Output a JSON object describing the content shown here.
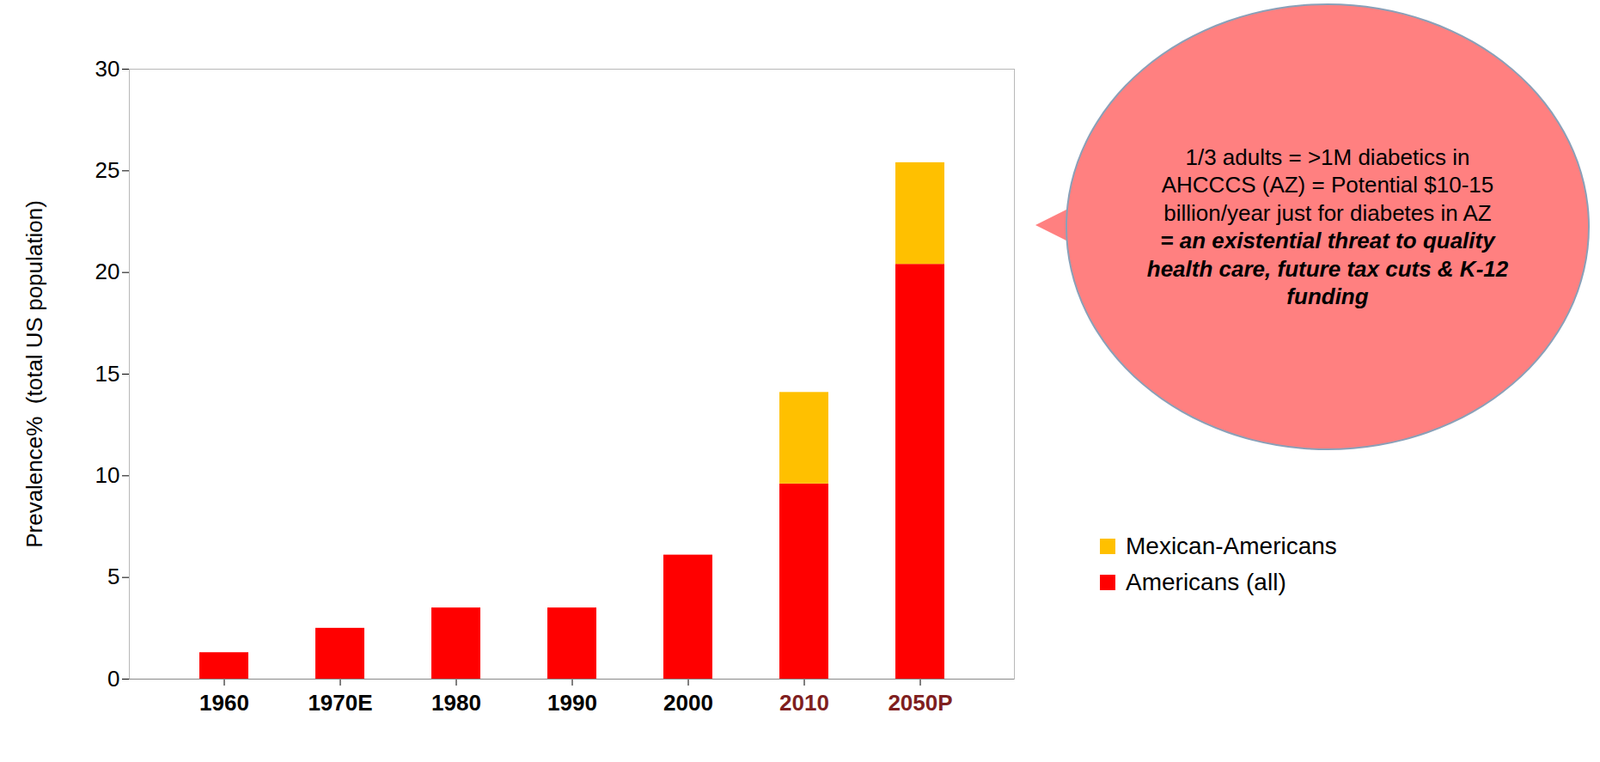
{
  "chart_data": {
    "type": "bar",
    "stacked": true,
    "categories": [
      "1960",
      "1970E",
      "1980",
      "1990",
      "2000",
      "2010",
      "2050P"
    ],
    "series": [
      {
        "name": "Mexican-Americans",
        "color": "#ffc000",
        "values": [
          null,
          null,
          null,
          null,
          null,
          4.5,
          5.0
        ]
      },
      {
        "name": "Americans (all)",
        "color": "#ff0000",
        "values": [
          1.3,
          2.5,
          3.5,
          3.5,
          6.1,
          9.6,
          20.4
        ]
      }
    ],
    "y_label": "Prevalence%  (total US population)",
    "ylim": [
      0,
      30
    ],
    "yticks": [
      0,
      5,
      10,
      15,
      20,
      25,
      30
    ],
    "annotations": [
      "1/3 adults = >1M diabetics in AHCCCS (AZ) = Potential  $10-15 billion/year just for diabetes in AZ",
      "= an existential threat to quality health care, future tax cuts & K-12 funding"
    ],
    "legend": "right",
    "grid": false,
    "data_labels": false
  }
}
